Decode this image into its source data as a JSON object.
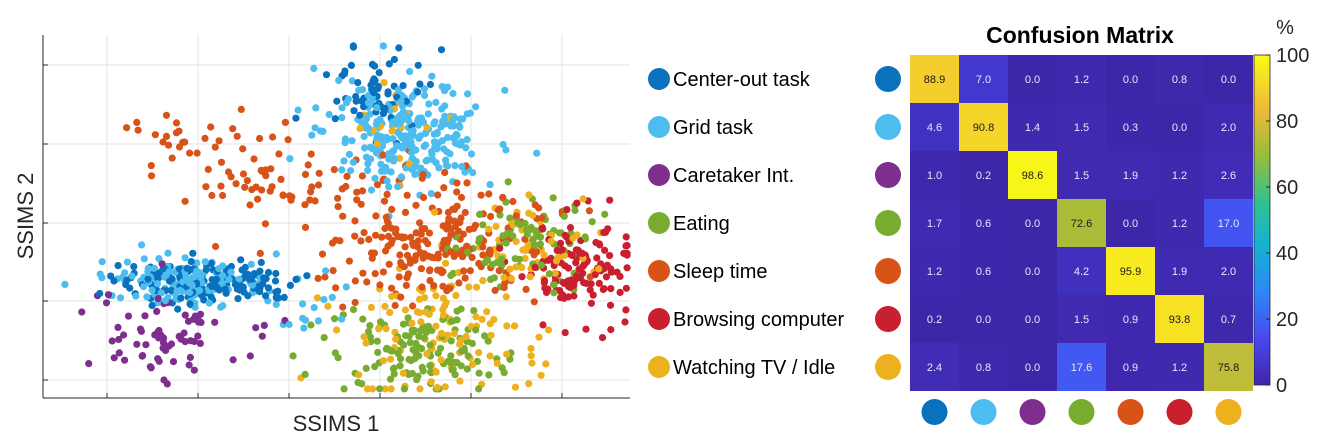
{
  "chart_data": [
    {
      "type": "scatter",
      "title": "",
      "xlabel": "SSIMS 1",
      "ylabel": "SSIMS 2",
      "grid": true,
      "tick_labels_shown": false,
      "note": "",
      "series": [
        {
          "name": "Center-out task",
          "color": "#0a72bd",
          "clusters": [
            {
              "cx": 0.28,
              "cy": 0.68,
              "sx": 0.08,
              "sy": 0.03,
              "n": 150
            },
            {
              "cx": 0.57,
              "cy": 0.16,
              "sx": 0.04,
              "sy": 0.06,
              "n": 60
            }
          ]
        },
        {
          "name": "Grid task",
          "color": "#4cbdee",
          "clusters": [
            {
              "cx": 0.24,
              "cy": 0.68,
              "sx": 0.07,
              "sy": 0.03,
              "n": 120
            },
            {
              "cx": 0.62,
              "cy": 0.27,
              "sx": 0.07,
              "sy": 0.07,
              "n": 260
            },
            {
              "cx": 0.46,
              "cy": 0.74,
              "sx": 0.03,
              "sy": 0.05,
              "n": 15
            }
          ]
        },
        {
          "name": "Caretaker Int.",
          "color": "#7e2f8e",
          "clusters": [
            {
              "cx": 0.22,
              "cy": 0.83,
              "sx": 0.09,
              "sy": 0.07,
              "n": 70
            }
          ]
        },
        {
          "name": "Eating",
          "color": "#77ac30",
          "clusters": [
            {
              "cx": 0.63,
              "cy": 0.87,
              "sx": 0.07,
              "sy": 0.06,
              "n": 130
            },
            {
              "cx": 0.82,
              "cy": 0.56,
              "sx": 0.06,
              "sy": 0.07,
              "n": 90
            }
          ]
        },
        {
          "name": "Sleep time",
          "color": "#d95319",
          "clusters": [
            {
              "cx": 0.67,
              "cy": 0.57,
              "sx": 0.1,
              "sy": 0.08,
              "n": 230
            },
            {
              "cx": 0.4,
              "cy": 0.4,
              "sx": 0.09,
              "sy": 0.05,
              "n": 60
            },
            {
              "cx": 0.25,
              "cy": 0.27,
              "sx": 0.06,
              "sy": 0.04,
              "n": 25
            }
          ]
        },
        {
          "name": "Browsing computer",
          "color": "#c9202f",
          "clusters": [
            {
              "cx": 0.91,
              "cy": 0.63,
              "sx": 0.05,
              "sy": 0.07,
              "n": 130
            }
          ]
        },
        {
          "name": "Watching TV / Idle",
          "color": "#edb120",
          "clusters": [
            {
              "cx": 0.68,
              "cy": 0.83,
              "sx": 0.08,
              "sy": 0.09,
              "n": 110
            },
            {
              "cx": 0.82,
              "cy": 0.58,
              "sx": 0.06,
              "sy": 0.06,
              "n": 50
            },
            {
              "cx": 0.58,
              "cy": 0.25,
              "sx": 0.04,
              "sy": 0.08,
              "n": 20
            }
          ]
        }
      ]
    },
    {
      "type": "heatmap",
      "title": "Confusion Matrix",
      "rows": [
        "Center-out task",
        "Grid task",
        "Caretaker Int.",
        "Eating",
        "Sleep time",
        "Browsing computer",
        "Watching TV / Idle"
      ],
      "row_colors": [
        "#0a72bd",
        "#4cbdee",
        "#7e2f8e",
        "#77ac30",
        "#d95319",
        "#c9202f",
        "#edb120"
      ],
      "values": [
        [
          88.9,
          7.0,
          0.0,
          1.2,
          0.0,
          0.8,
          0.0
        ],
        [
          4.6,
          90.8,
          1.4,
          1.5,
          0.3,
          0.0,
          2.0
        ],
        [
          1.0,
          0.2,
          98.6,
          1.5,
          1.9,
          1.2,
          2.6
        ],
        [
          1.7,
          0.6,
          0.0,
          72.6,
          0.0,
          1.2,
          17.0
        ],
        [
          1.2,
          0.6,
          0.0,
          4.2,
          95.9,
          1.9,
          2.0
        ],
        [
          0.2,
          0.0,
          0.0,
          1.5,
          0.9,
          93.8,
          0.7
        ],
        [
          2.4,
          0.8,
          0.0,
          17.6,
          0.9,
          1.2,
          75.8
        ]
      ],
      "colorbar": {
        "label": "%",
        "min": 0,
        "max": 100,
        "ticks": [
          0,
          20,
          40,
          60,
          80,
          100
        ],
        "colormap": "parula"
      }
    }
  ]
}
